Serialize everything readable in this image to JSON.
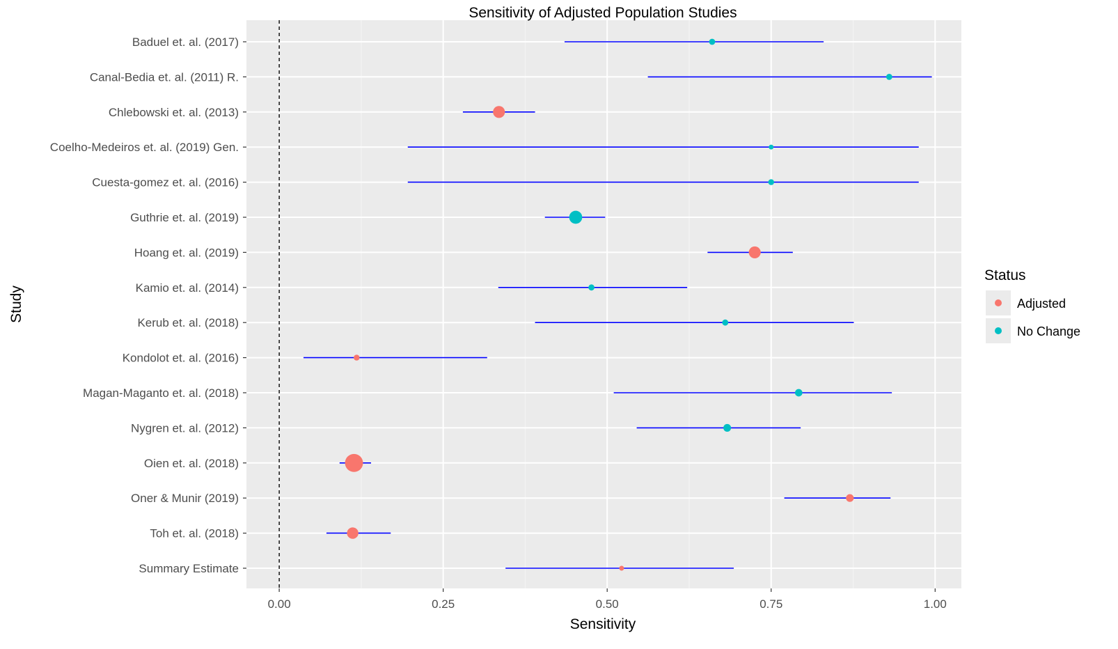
{
  "chart_data": {
    "type": "scatter",
    "subtype": "forest-plot",
    "title": "Sensitivity of Adjusted Population Studies",
    "xlabel": "Sensitivity",
    "ylabel": "Study",
    "xlim": [
      -0.05,
      1.04
    ],
    "x_ticks": [
      0,
      0.25,
      0.5,
      0.75,
      1.0
    ],
    "x_tick_labels": [
      "0.00",
      "0.25",
      "0.50",
      "0.75",
      "1.00"
    ],
    "reference_line": {
      "x": 0,
      "style": "dashed"
    },
    "grid": true,
    "legend": {
      "title": "Status",
      "position": "right",
      "entries": [
        {
          "label": "Adjusted",
          "color": "#F8766D"
        },
        {
          "label": "No Change",
          "color": "#00BFC4"
        }
      ]
    },
    "ci_color": "#0000FF",
    "studies": [
      {
        "label": "Baduel et. al. (2017)",
        "estimate": 0.66,
        "lower": 0.435,
        "upper": 0.83,
        "status": "No Change",
        "weight": 1.0
      },
      {
        "label": "Canal-Bedia et. al. (2011) R.",
        "estimate": 0.93,
        "lower": 0.562,
        "upper": 0.995,
        "status": "No Change",
        "weight": 1.0
      },
      {
        "label": "Chlebowski et. al. (2013)",
        "estimate": 0.335,
        "lower": 0.28,
        "upper": 0.39,
        "status": "Adjusted",
        "weight": 3.2
      },
      {
        "label": "Coelho-Medeiros et. al. (2019) Gen.",
        "estimate": 0.75,
        "lower": 0.196,
        "upper": 0.975,
        "status": "No Change",
        "weight": 0.5
      },
      {
        "label": "Cuesta-gomez et. al. (2016)",
        "estimate": 0.75,
        "lower": 0.196,
        "upper": 0.975,
        "status": "No Change",
        "weight": 0.9
      },
      {
        "label": "Guthrie et. al. (2019)",
        "estimate": 0.452,
        "lower": 0.405,
        "upper": 0.497,
        "status": "No Change",
        "weight": 3.6
      },
      {
        "label": "Hoang et. al. (2019)",
        "estimate": 0.725,
        "lower": 0.653,
        "upper": 0.783,
        "status": "Adjusted",
        "weight": 3.2
      },
      {
        "label": "Kamio et. al. (2014)",
        "estimate": 0.476,
        "lower": 0.334,
        "upper": 0.622,
        "status": "No Change",
        "weight": 1.0
      },
      {
        "label": "Kerub et. al. (2018)",
        "estimate": 0.68,
        "lower": 0.39,
        "upper": 0.876,
        "status": "No Change",
        "weight": 1.0
      },
      {
        "label": "Kondolot et. al. (2016)",
        "estimate": 0.118,
        "lower": 0.037,
        "upper": 0.317,
        "status": "Adjusted",
        "weight": 0.9
      },
      {
        "label": "Magan-Maganto et. al. (2018)",
        "estimate": 0.792,
        "lower": 0.51,
        "upper": 0.934,
        "status": "No Change",
        "weight": 1.5
      },
      {
        "label": "Nygren et. al. (2012)",
        "estimate": 0.683,
        "lower": 0.545,
        "upper": 0.795,
        "status": "No Change",
        "weight": 1.6
      },
      {
        "label": "Oien et. al. (2018)",
        "estimate": 0.114,
        "lower": 0.092,
        "upper": 0.14,
        "status": "Adjusted",
        "weight": 5.5
      },
      {
        "label": "Oner & Munir (2019)",
        "estimate": 0.87,
        "lower": 0.77,
        "upper": 0.932,
        "status": "Adjusted",
        "weight": 1.6
      },
      {
        "label": "Toh et. al. (2018)",
        "estimate": 0.112,
        "lower": 0.072,
        "upper": 0.17,
        "status": "Adjusted",
        "weight": 3.0
      },
      {
        "label": "Summary Estimate",
        "estimate": 0.522,
        "lower": 0.345,
        "upper": 0.693,
        "status": "Adjusted",
        "weight": 0.5
      }
    ]
  }
}
